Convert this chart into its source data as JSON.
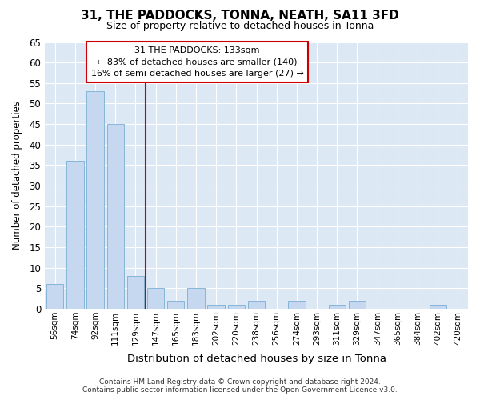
{
  "title": "31, THE PADDOCKS, TONNA, NEATH, SA11 3FD",
  "subtitle": "Size of property relative to detached houses in Tonna",
  "xlabel": "Distribution of detached houses by size in Tonna",
  "ylabel": "Number of detached properties",
  "categories": [
    "56sqm",
    "74sqm",
    "92sqm",
    "111sqm",
    "129sqm",
    "147sqm",
    "165sqm",
    "183sqm",
    "202sqm",
    "220sqm",
    "238sqm",
    "256sqm",
    "274sqm",
    "293sqm",
    "311sqm",
    "329sqm",
    "347sqm",
    "365sqm",
    "384sqm",
    "402sqm",
    "420sqm"
  ],
  "values": [
    6,
    36,
    53,
    45,
    8,
    5,
    2,
    5,
    1,
    1,
    2,
    0,
    2,
    0,
    1,
    2,
    0,
    0,
    0,
    1,
    0
  ],
  "bar_color": "#c5d8f0",
  "bar_edge_color": "#7aafd4",
  "background_color": "#dde8f5",
  "grid_color": "#ffffff",
  "red_line_x": 4.5,
  "annotation_line1": "31 THE PADDOCKS: 133sqm",
  "annotation_line2": "← 83% of detached houses are smaller (140)",
  "annotation_line3": "16% of semi-detached houses are larger (27) →",
  "annotation_box_color": "#ffffff",
  "annotation_box_edge": "#cc0000",
  "red_line_color": "#cc0000",
  "footer_line1": "Contains HM Land Registry data © Crown copyright and database right 2024.",
  "footer_line2": "Contains public sector information licensed under the Open Government Licence v3.0.",
  "ylim": [
    0,
    65
  ],
  "yticks": [
    0,
    5,
    10,
    15,
    20,
    25,
    30,
    35,
    40,
    45,
    50,
    55,
    60,
    65
  ]
}
